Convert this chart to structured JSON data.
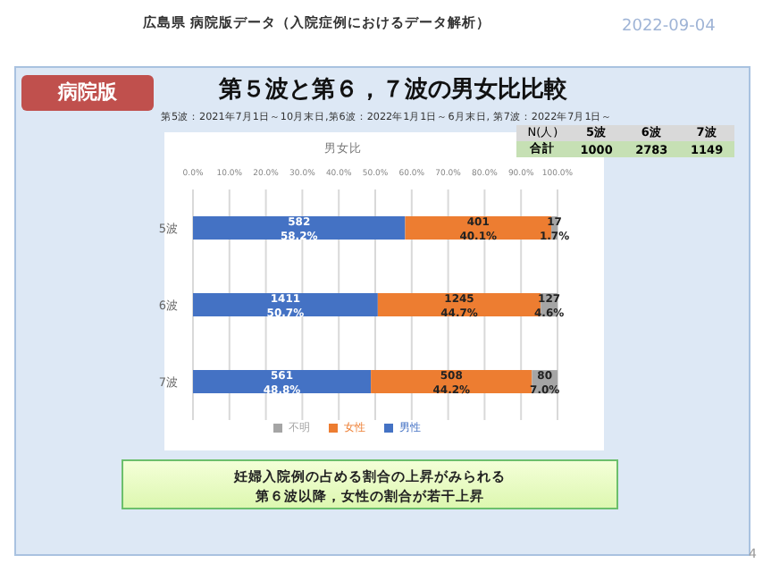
{
  "chart_data": {
    "type": "bar",
    "orientation": "horizontal",
    "stacked": true,
    "title": "第５波と第６，７波の男女比比較",
    "subtitle": "第5波：2021年7月1日～10月末日,第6波：2022年1月1日～6月末日, 第7波：2022年7月1日～",
    "categories": [
      "5波",
      "6波",
      "7波"
    ],
    "series": [
      {
        "name": "男性",
        "color": "#4472c4",
        "values": [
          58.2,
          50.7,
          48.8
        ],
        "value_labels": [
          "582\n58.2%",
          "1411\n50.7%",
          "561\n48.8%"
        ]
      },
      {
        "name": "女性",
        "color": "#ed7d31",
        "values": [
          40.1,
          44.7,
          44.2
        ],
        "value_labels": [
          "401\n40.1%",
          "1245\n44.7%",
          "508\n44.2%"
        ]
      },
      {
        "name": "不明",
        "color": "#a5a5a5",
        "values": [
          1.7,
          4.6,
          7.0
        ],
        "value_labels": [
          "17\n1.7%",
          "127\n4.6%",
          "80\n7.0%"
        ]
      }
    ],
    "xlim": [
      0,
      100
    ],
    "xticks": [
      {
        "value": 0,
        "label": "0.0%"
      },
      {
        "value": 10,
        "label": "10.0%"
      },
      {
        "value": 20,
        "label": "20.0%"
      },
      {
        "value": 30,
        "label": "30.0%"
      },
      {
        "value": 40,
        "label": "40.0%"
      },
      {
        "value": 50,
        "label": "50.0%"
      },
      {
        "value": 60,
        "label": "60.0%"
      },
      {
        "value": 70,
        "label": "70.0%"
      },
      {
        "value": 80,
        "label": "80.0%"
      },
      {
        "value": 90,
        "label": "90.0%"
      },
      {
        "value": 100,
        "label": "100.0%"
      }
    ],
    "grid": "x",
    "legend": "bottom",
    "annotations": [
      "男女比",
      "広島県 病院版データ（入院症例におけるデータ解析）",
      "2022-09-04",
      "病院版",
      "4",
      "妊婦入院例の占める割合の上昇がみられる",
      "第６波以降，女性の割合が若干上昇",
      "N(人)",
      "5波",
      "6波",
      "7波",
      "合計",
      "1000",
      "2783",
      "1149"
    ]
  }
}
